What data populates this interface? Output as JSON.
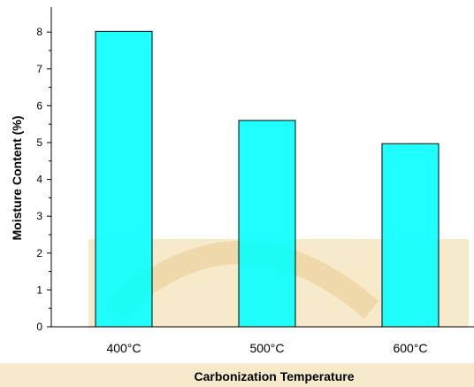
{
  "chart_data": {
    "type": "bar",
    "categories": [
      "400°C",
      "500°C",
      "600°C"
    ],
    "values": [
      8.02,
      5.6,
      4.97
    ],
    "xlabel": "Carbonization Temperature",
    "ylabel": "Moisture Content (%)",
    "ylim": [
      0,
      8.6
    ],
    "yticks": [
      "0",
      "1",
      "2",
      "3",
      "4",
      "5",
      "6",
      "7",
      "8"
    ],
    "bar_color": "#00ffff",
    "bar_edge_color": "#000000",
    "grid": false
  }
}
